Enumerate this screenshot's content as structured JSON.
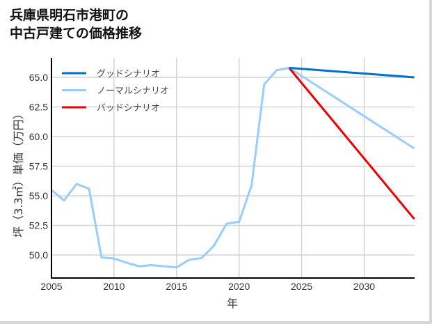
{
  "title": {
    "line1": "兵庫県明石市港町の",
    "line2": "中古戸建ての価格推移"
  },
  "chart_data": {
    "type": "line",
    "title": "兵庫県明石市港町の中古戸建ての価格推移",
    "xlabel": "年",
    "ylabel": "坪（3.3㎡）単価（万円）",
    "xlim": [
      2005,
      2034
    ],
    "ylim": [
      48.2,
      67.2
    ],
    "x_ticks": [
      "2005",
      "2010",
      "2015",
      "2020",
      "2025",
      "2030"
    ],
    "y_ticks": [
      "50.0",
      "52.5",
      "55.0",
      "57.5",
      "60.0",
      "62.5",
      "65.0"
    ],
    "grid": true,
    "legend_position": "upper left",
    "series": [
      {
        "name": "グッドシナリオ",
        "color": "#0070c8",
        "x": [
          2024,
          2034
        ],
        "values": [
          65.8,
          65.0
        ]
      },
      {
        "name": "ノーマルシナリオ",
        "color": "#99ccff",
        "x": [
          2005,
          2006,
          2007,
          2008,
          2009,
          2010,
          2011,
          2012,
          2013,
          2014,
          2015,
          2016,
          2017,
          2018,
          2019,
          2020,
          2021,
          2022,
          2023,
          2024,
          2034
        ],
        "values": [
          55.5,
          54.6,
          56.0,
          55.6,
          49.8,
          49.7,
          49.35,
          49.05,
          49.15,
          49.05,
          48.95,
          49.6,
          49.75,
          50.8,
          52.65,
          52.8,
          55.9,
          64.4,
          65.6,
          65.8,
          59.0
        ]
      },
      {
        "name": "バッドシナリオ",
        "color": "#ee0000",
        "x": [
          2024,
          2034
        ],
        "values": [
          65.8,
          53.05
        ]
      }
    ]
  }
}
